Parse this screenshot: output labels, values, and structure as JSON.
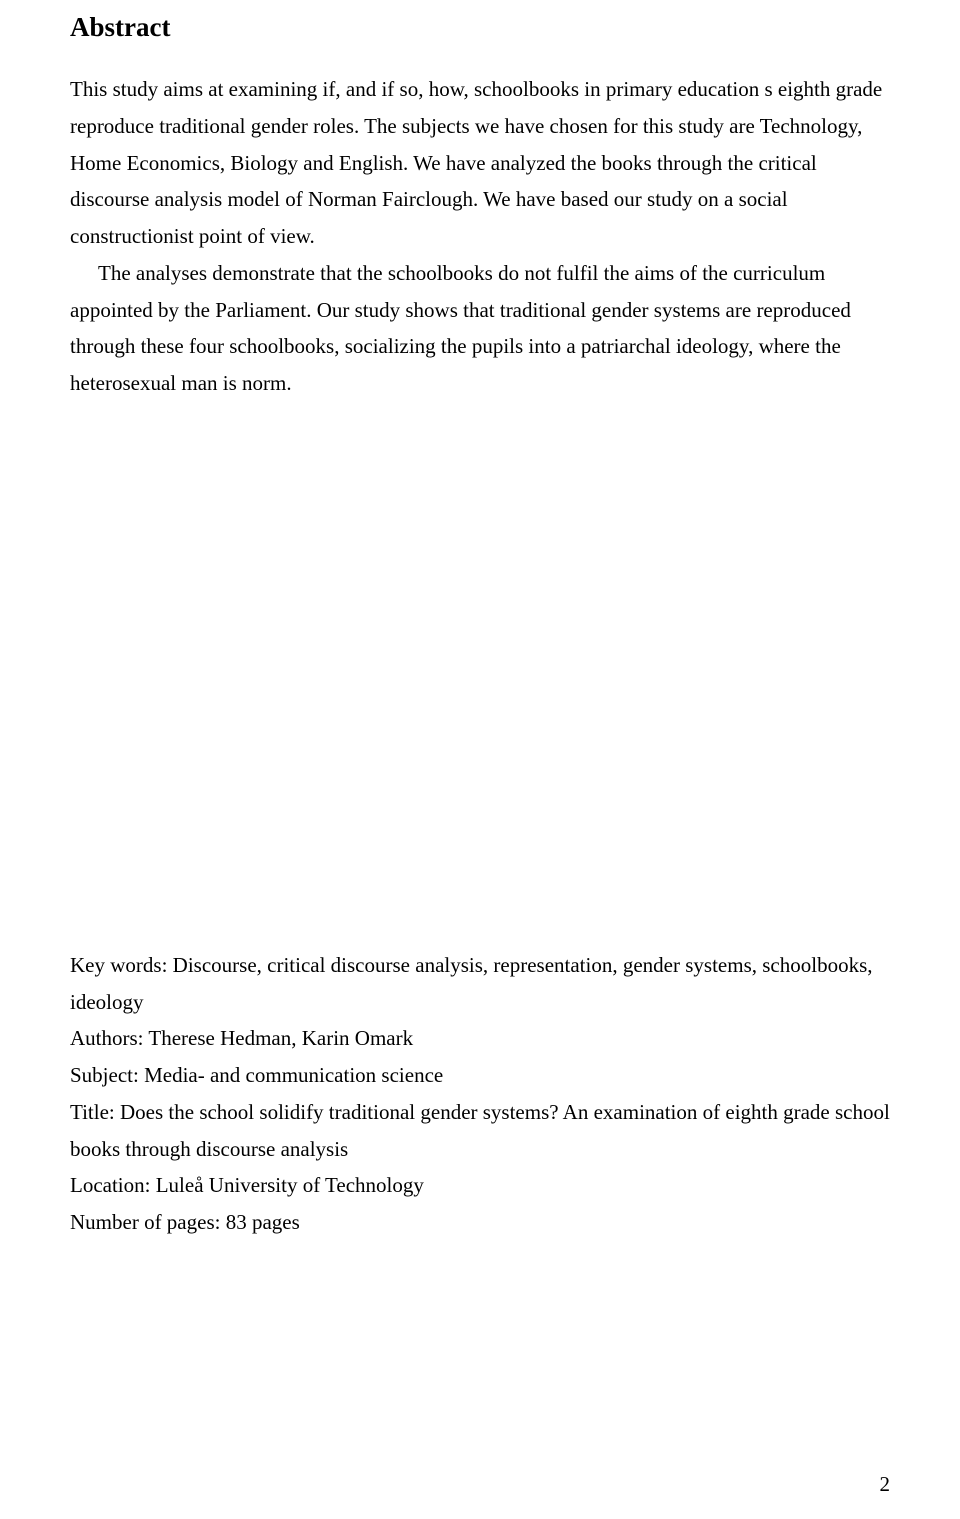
{
  "heading": "Abstract",
  "paragraph1": "This study aims at examining if, and if so, how, schoolbooks in primary education s eighth grade reproduce traditional gender roles. The subjects we have chosen for this study are Technology, Home Economics, Biology and English. We have analyzed the books through the critical discourse analysis model of Norman Fairclough. We have based our study on a social constructionist point of view.",
  "paragraph2": "The analyses demonstrate that the schoolbooks do not fulfil the aims of the curriculum appointed by the Parliament. Our study shows that traditional gender systems are reproduced through these four schoolbooks, socializing the pupils into a patriarchal ideology, where the heterosexual man is norm.",
  "meta": {
    "keywords_label": "Key words: ",
    "keywords_value": "Discourse, critical discourse analysis, representation, gender systems, schoolbooks, ideology",
    "authors_label": "Authors: ",
    "authors_value": "Therese Hedman, Karin Omark",
    "subject_label": "Subject: ",
    "subject_value": "Media- and communication science",
    "title_label": "Title: ",
    "title_value": "Does the school solidify traditional gender systems? An examination of eighth grade school books through discourse analysis",
    "location_label": "Location: ",
    "location_value": "Luleå University of Technology",
    "pages_label": "Number of pages: ",
    "pages_value": "83 pages"
  },
  "page_number": "2"
}
